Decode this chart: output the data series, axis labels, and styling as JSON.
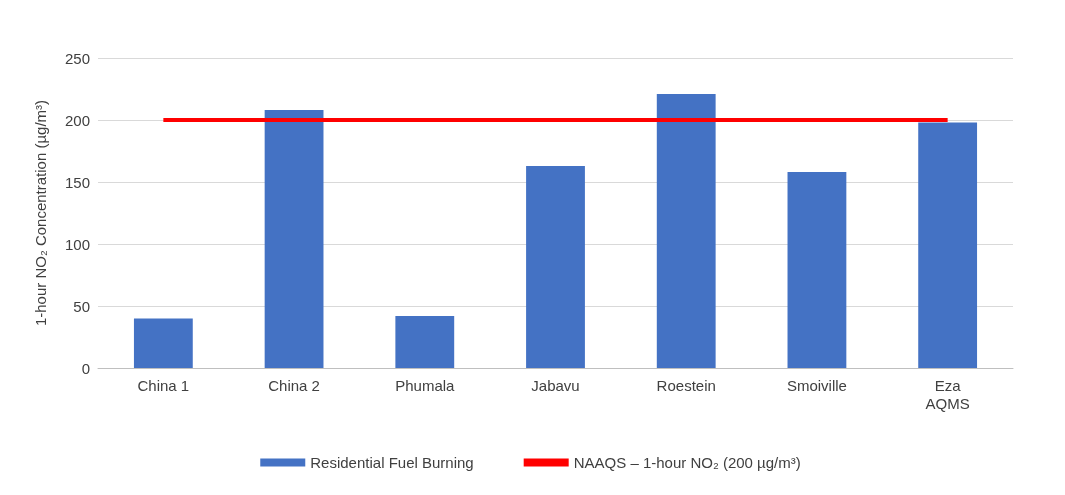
{
  "chart_data": {
    "type": "bar",
    "ylabel": "1-hour NO₂ Concentration (µg/m³)",
    "categories": [
      "China 1",
      "China 2",
      "Phumala",
      "Jabavu",
      "Roestein",
      "Smoiville",
      "Eza\nAQMS"
    ],
    "series": [
      {
        "name": "Residential Fuel Burning",
        "color": "#4472c4",
        "values": [
          40,
          208,
          42,
          163,
          221,
          158,
          198
        ]
      },
      {
        "name": "NAAQS – 1-hour NO₂ (200 µg/m³)",
        "type": "line",
        "color": "#ff0000",
        "values": [
          200,
          200,
          200,
          200,
          200,
          200,
          200
        ]
      }
    ],
    "ylim": [
      0,
      250
    ],
    "yticks": [
      0,
      50,
      100,
      150,
      200,
      250
    ],
    "grid": "y",
    "legend": "bottom",
    "marker": "none"
  }
}
